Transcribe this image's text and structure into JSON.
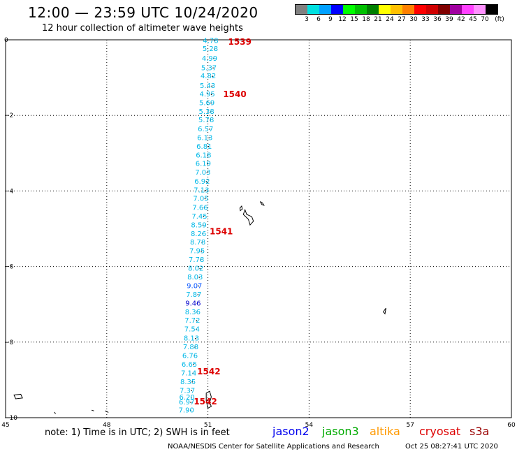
{
  "title": "12:00 — 23:59 UTC 10/24/2020",
  "subtitle": "12 hour collection of altimeter wave heights",
  "legend": {
    "colors": [
      "#808080",
      "#00e0e0",
      "#00a0ff",
      "#0000ff",
      "#00ff00",
      "#00c000",
      "#008000",
      "#ffff00",
      "#ffc000",
      "#ff8000",
      "#ff0000",
      "#d00000",
      "#800000",
      "#a000a0",
      "#ff40ff",
      "#ff90ff",
      "#000000"
    ],
    "labels": [
      "3",
      "6",
      "9",
      "12",
      "15",
      "18",
      "21",
      "24",
      "27",
      "30",
      "33",
      "36",
      "39",
      "42",
      "45",
      "70",
      "(ft)"
    ]
  },
  "axes": {
    "x_ticks": [
      "45",
      "48",
      "51",
      "54",
      "57",
      "60"
    ],
    "y_ticks": [
      "0",
      "−2",
      "−4",
      "−6",
      "−8",
      "−10"
    ]
  },
  "track_color": "#00b8e8",
  "orbit_color": "#dd0000",
  "wave_heights": [
    {
      "value": "4.78",
      "lat": -0.08,
      "lon": 51.08,
      "color": "#00b8e8"
    },
    {
      "value": "5.28",
      "lat": -0.3,
      "lon": 51.07,
      "color": "#00b8e8"
    },
    {
      "value": "4.99",
      "lat": -0.55,
      "lon": 51.05,
      "color": "#00b8e8"
    },
    {
      "value": "5.37",
      "lat": -0.8,
      "lon": 51.03,
      "color": "#00b8e8"
    },
    {
      "value": "4.82",
      "lat": -1.02,
      "lon": 51.01,
      "color": "#00b8e8"
    },
    {
      "value": "5.43",
      "lat": -1.28,
      "lon": 50.99,
      "color": "#00b8e8"
    },
    {
      "value": "4.95",
      "lat": -1.5,
      "lon": 50.98,
      "color": "#00b8e8"
    },
    {
      "value": "5.69",
      "lat": -1.73,
      "lon": 50.97,
      "color": "#00b8e8"
    },
    {
      "value": "5.38",
      "lat": -1.96,
      "lon": 50.96,
      "color": "#00b8e8"
    },
    {
      "value": "5.78",
      "lat": -2.18,
      "lon": 50.95,
      "color": "#00b8e8"
    },
    {
      "value": "6.57",
      "lat": -2.42,
      "lon": 50.93,
      "color": "#00b8e8"
    },
    {
      "value": "6.13",
      "lat": -2.65,
      "lon": 50.91,
      "color": "#00b8e8"
    },
    {
      "value": "6.81",
      "lat": -2.88,
      "lon": 50.89,
      "color": "#00b8e8"
    },
    {
      "value": "6.18",
      "lat": -3.11,
      "lon": 50.87,
      "color": "#00b8e8"
    },
    {
      "value": "6.19",
      "lat": -3.34,
      "lon": 50.86,
      "color": "#00b8e8"
    },
    {
      "value": "7.03",
      "lat": -3.57,
      "lon": 50.85,
      "color": "#00b8e8"
    },
    {
      "value": "6.92",
      "lat": -3.81,
      "lon": 50.83,
      "color": "#00b8e8"
    },
    {
      "value": "7.13",
      "lat": -4.04,
      "lon": 50.81,
      "color": "#00b8e8"
    },
    {
      "value": "7.05",
      "lat": -4.26,
      "lon": 50.79,
      "color": "#00b8e8"
    },
    {
      "value": "7.66",
      "lat": -4.5,
      "lon": 50.77,
      "color": "#00b8e8"
    },
    {
      "value": "7.45",
      "lat": -4.73,
      "lon": 50.75,
      "color": "#00b8e8"
    },
    {
      "value": "8.59",
      "lat": -4.96,
      "lon": 50.73,
      "color": "#00b8e8"
    },
    {
      "value": "8.26",
      "lat": -5.19,
      "lon": 50.72,
      "color": "#00b8e8"
    },
    {
      "value": "8.78",
      "lat": -5.42,
      "lon": 50.7,
      "color": "#00b8e8"
    },
    {
      "value": "7.95",
      "lat": -5.65,
      "lon": 50.68,
      "color": "#00b8e8"
    },
    {
      "value": "7.78",
      "lat": -5.88,
      "lon": 50.66,
      "color": "#00b8e8"
    },
    {
      "value": "8.02",
      "lat": -6.11,
      "lon": 50.64,
      "color": "#00b8e8"
    },
    {
      "value": "8.03",
      "lat": -6.34,
      "lon": 50.62,
      "color": "#00b8e8"
    },
    {
      "value": "9.07",
      "lat": -6.57,
      "lon": 50.6,
      "color": "#0050ff"
    },
    {
      "value": "7.87",
      "lat": -6.8,
      "lon": 50.58,
      "color": "#00b8e8"
    },
    {
      "value": "9.46",
      "lat": -7.03,
      "lon": 50.56,
      "color": "#0000cc"
    },
    {
      "value": "8.36",
      "lat": -7.26,
      "lon": 50.55,
      "color": "#00b8e8"
    },
    {
      "value": "7.72",
      "lat": -7.49,
      "lon": 50.54,
      "color": "#00b8e8"
    },
    {
      "value": "7.54",
      "lat": -7.72,
      "lon": 50.53,
      "color": "#00b8e8"
    },
    {
      "value": "8.13",
      "lat": -7.96,
      "lon": 50.51,
      "color": "#00b8e8"
    },
    {
      "value": "7.88",
      "lat": -8.19,
      "lon": 50.49,
      "color": "#00b8e8"
    },
    {
      "value": "6.76",
      "lat": -8.42,
      "lon": 50.47,
      "color": "#00b8e8"
    },
    {
      "value": "6.65",
      "lat": -8.65,
      "lon": 50.45,
      "color": "#00b8e8"
    },
    {
      "value": "7.14",
      "lat": -8.88,
      "lon": 50.43,
      "color": "#00b8e8"
    },
    {
      "value": "8.35",
      "lat": -9.11,
      "lon": 50.41,
      "color": "#00b8e8"
    },
    {
      "value": "7.37",
      "lat": -9.34,
      "lon": 50.39,
      "color": "#00b8e8"
    },
    {
      "value": "6.20",
      "lat": -9.52,
      "lon": 50.38,
      "color": "#00b8e8"
    },
    {
      "value": "6.97",
      "lat": -9.65,
      "lon": 50.37,
      "color": "#00b8e8"
    },
    {
      "value": "7.90",
      "lat": -9.86,
      "lon": 50.36,
      "color": "#00b8e8"
    }
  ],
  "orbit_labels": [
    {
      "value": "1539",
      "lat": -0.13,
      "lon": 51.6
    },
    {
      "value": "1540",
      "lat": -1.52,
      "lon": 51.45
    },
    {
      "value": "1541",
      "lat": -5.15,
      "lon": 51.05
    },
    {
      "value": "1542",
      "lat": -8.85,
      "lon": 50.68
    },
    {
      "value": "1542",
      "lat": -9.65,
      "lon": 50.58
    }
  ],
  "note": "note:  1) Time is in UTC;  2) SWH is in feet",
  "satellites": [
    {
      "name": "jason2",
      "color": "#0000ee"
    },
    {
      "name": "jason3",
      "color": "#00aa00"
    },
    {
      "name": "altika",
      "color": "#ff9900"
    },
    {
      "name": "cryosat",
      "color": "#dd0000"
    },
    {
      "name": "s3a",
      "color": "#990000"
    }
  ],
  "credit": "NOAA/NESDIS Center for Satellite Applications and Research",
  "timestamp": "Oct 25 08:27:41 UTC 2020"
}
